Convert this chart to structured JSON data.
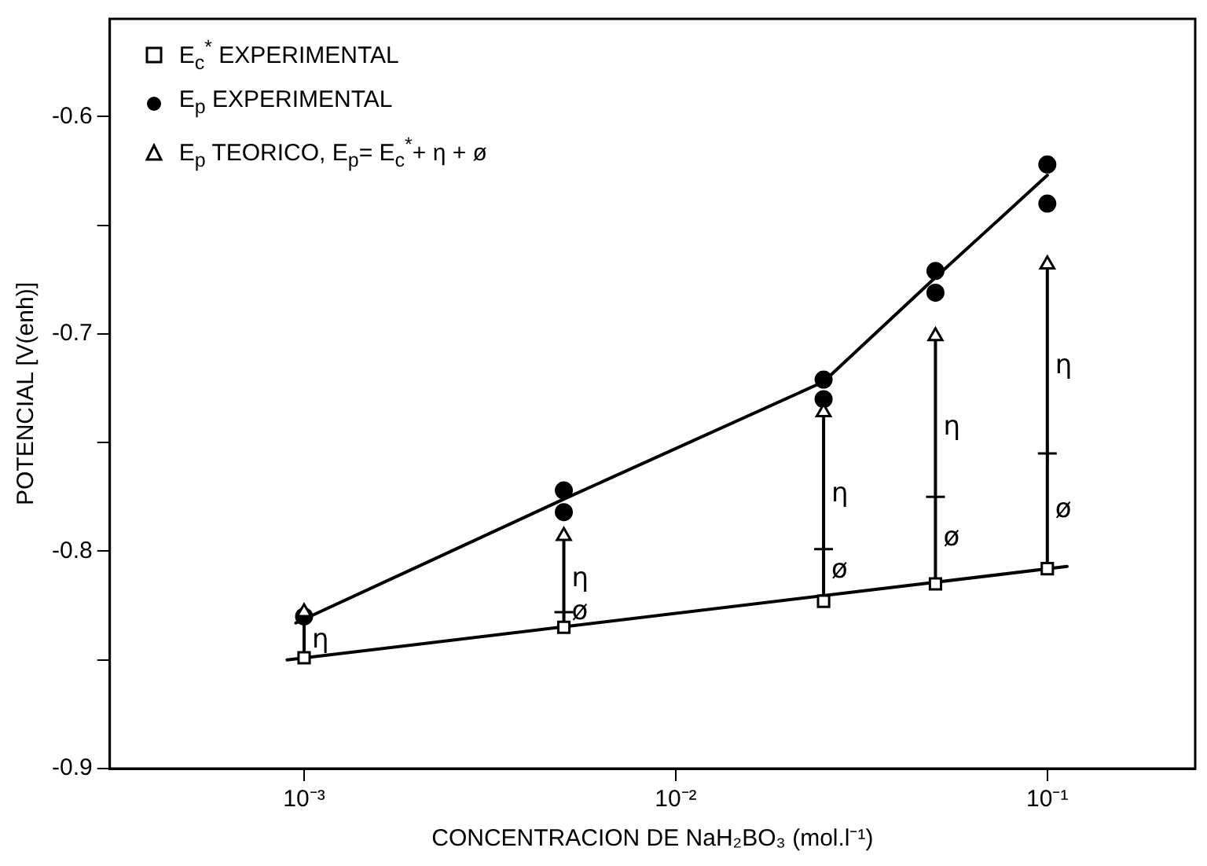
{
  "chart_data": {
    "type": "scatter",
    "xlabel": "CONCENTRACION DE NaH₂BO₃ (mol.l⁻¹)",
    "ylabel": "POTENCIAL [V(enh)]",
    "log": "x",
    "xlim": [
      0.0003,
      0.25
    ],
    "xticks": [
      {
        "value": 0.001,
        "label": "10⁻³"
      },
      {
        "value": 0.01,
        "label": "10⁻²"
      },
      {
        "value": 0.1,
        "label": "10⁻¹"
      }
    ],
    "ylim": [
      -0.9,
      -0.555
    ],
    "yticks": [
      -0.9,
      {
        "value": -0.85,
        "label": null
      },
      -0.8,
      {
        "value": -0.75,
        "label": null
      },
      -0.7,
      {
        "value": -0.65,
        "label": null
      },
      -0.6
    ],
    "grid": false,
    "legend": "top left",
    "series": [
      {
        "name": "E$_{c}$$^{*}$ EXPERIMENTAL",
        "marker": "square",
        "color": "#000000",
        "x": [
          0.001,
          0.005,
          0.025,
          0.05,
          0.1
        ],
        "values": [
          -0.849,
          -0.835,
          -0.823,
          -0.815,
          -0.808
        ]
      },
      {
        "name": "E$_{p}$ EXPERIMENTAL",
        "marker": "circle",
        "color": "#000000",
        "x": [
          0.001,
          0.005,
          0.005,
          0.025,
          0.025,
          0.05,
          0.05,
          0.1,
          0.1
        ],
        "values": [
          -0.83,
          -0.772,
          -0.782,
          -0.721,
          -0.73,
          -0.671,
          -0.681,
          -0.622,
          -0.64
        ]
      },
      {
        "name": "E$_{p}$ TEORICO, E$_{p}$= E$_{c}$$^{*}$+ η + ø",
        "marker": "triangle",
        "color": "#000000",
        "x": [
          0.001,
          0.005,
          0.025,
          0.05,
          0.1
        ],
        "values": [
          -0.828,
          -0.793,
          -0.736,
          -0.701,
          -0.668
        ]
      },
      {
        "type": "line",
        "marker": "none",
        "color": "#000000",
        "x": [
          0.0009,
          0.113
        ],
        "values": [
          -0.85,
          -0.807
        ]
      },
      {
        "type": "line",
        "marker": "none",
        "color": "#000000",
        "x": [
          0.00095,
          0.005,
          0.025,
          0.05,
          0.1
        ],
        "values": [
          -0.833,
          -0.776,
          -0.722,
          -0.674,
          -0.627
        ]
      },
      {
        "type": "line",
        "marker": "none",
        "color": "#000000",
        "x": [
          0.001,
          0.001
        ],
        "values": [
          -0.849,
          -0.828
        ]
      },
      {
        "type": "line",
        "marker": "none",
        "color": "#000000",
        "x": [
          0.005,
          0.005
        ],
        "values": [
          -0.835,
          -0.793
        ]
      },
      {
        "type": "line",
        "marker": "none",
        "color": "#000000",
        "x": [
          0.025,
          0.025
        ],
        "values": [
          -0.823,
          -0.736
        ]
      },
      {
        "type": "line",
        "marker": "none",
        "color": "#000000",
        "x": [
          0.05,
          0.05
        ],
        "values": [
          -0.815,
          -0.701
        ]
      },
      {
        "type": "line",
        "marker": "none",
        "color": "#000000",
        "x": [
          0.1,
          0.1
        ],
        "values": [
          -0.808,
          -0.668
        ]
      },
      {
        "marker": "cross",
        "color": "#000000",
        "x": [
          0.005,
          0.025,
          0.05,
          0.1
        ],
        "values": [
          -0.828,
          -0.799,
          -0.775,
          -0.755
        ]
      }
    ],
    "annotations": [
      {
        "text": "η",
        "x": 0.001,
        "y": -0.841
      },
      {
        "text": "η",
        "x": 0.005,
        "y": -0.813
      },
      {
        "text": "ø",
        "x": 0.005,
        "y": -0.828
      },
      {
        "text": "η",
        "x": 0.025,
        "y": -0.774
      },
      {
        "text": "ø",
        "x": 0.025,
        "y": -0.809
      },
      {
        "text": "η",
        "x": 0.05,
        "y": -0.743
      },
      {
        "text": "ø",
        "x": 0.05,
        "y": -0.794
      },
      {
        "text": "η",
        "x": 0.1,
        "y": -0.715
      },
      {
        "text": "ø",
        "x": 0.1,
        "y": -0.781
      }
    ]
  }
}
